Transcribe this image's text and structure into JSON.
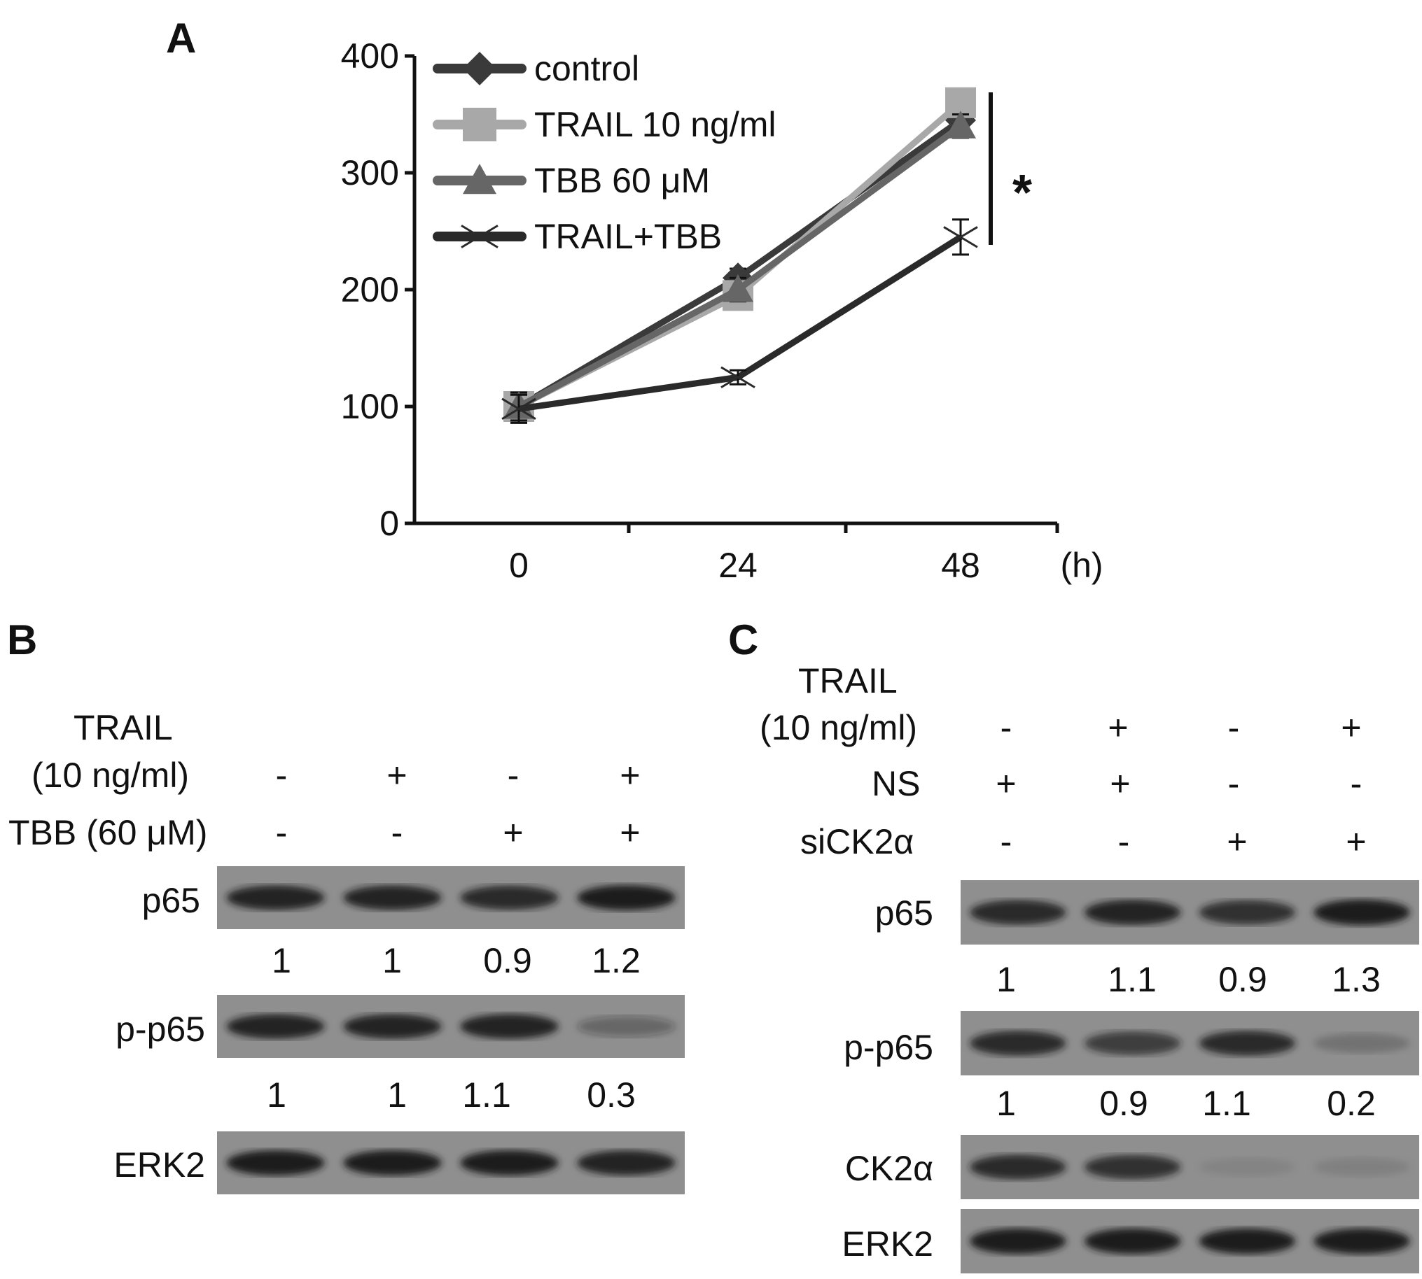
{
  "panels": {
    "a": "A",
    "b": "B",
    "c": "C"
  },
  "chart_data": {
    "type": "line",
    "x": [
      0,
      24,
      48
    ],
    "xlabel": "(h)",
    "ylabel": "",
    "ylim": [
      0,
      400
    ],
    "yticks": [
      0,
      100,
      200,
      300,
      400
    ],
    "xticks": [
      "0",
      "24",
      "48"
    ],
    "grid": false,
    "legend": "top-left",
    "significance_mark": "*",
    "series": [
      {
        "name": "control",
        "values": [
          100,
          210,
          345
        ],
        "errors": [
          12,
          8,
          10
        ],
        "color": "#3a3a3a",
        "marker": "diamond"
      },
      {
        "name": "TRAIL 10 ng/ml",
        "values": [
          100,
          195,
          360
        ],
        "errors": [
          12,
          10,
          10
        ],
        "color": "#a8a8a8",
        "marker": "square"
      },
      {
        "name": "TBB 60 μM",
        "values": [
          100,
          200,
          340
        ],
        "errors": [
          12,
          10,
          10
        ],
        "color": "#666666",
        "marker": "triangle"
      },
      {
        "name": "TRAIL+TBB",
        "values": [
          98,
          125,
          245
        ],
        "errors": [
          12,
          6,
          15
        ],
        "color": "#2a2a2a",
        "marker": "x"
      }
    ]
  },
  "panel_b": {
    "trail_label_1": "TRAIL",
    "trail_label_2": "(10 ng/ml)",
    "tbb_label": "TBB (60 μM)",
    "trail_signs": [
      "-",
      "+",
      "-",
      "+"
    ],
    "tbb_signs": [
      "-",
      "-",
      "+",
      "+"
    ],
    "blots": [
      {
        "label": "p65",
        "values": [
          "1",
          "1",
          "0.9",
          "1.2"
        ],
        "intensity": [
          0.9,
          0.9,
          0.85,
          1.0
        ]
      },
      {
        "label": "p-p65",
        "values": [
          "1",
          "1",
          "1.1",
          "0.3"
        ],
        "intensity": [
          0.9,
          0.9,
          0.95,
          0.35
        ]
      },
      {
        "label": "ERK2",
        "values": [],
        "intensity": [
          1.0,
          1.0,
          1.0,
          0.95
        ]
      }
    ]
  },
  "panel_c": {
    "trail_label_1": "TRAIL",
    "trail_label_2": "(10 ng/ml)",
    "ns_label": "NS",
    "sick2_label": "siCK2α",
    "trail_signs": [
      "-",
      "+",
      "-",
      "+"
    ],
    "ns_signs": [
      "+",
      "+",
      "-",
      "-"
    ],
    "sick2_signs": [
      "-",
      "-",
      "+",
      "+"
    ],
    "blots": [
      {
        "label": "p65",
        "values": [
          "1",
          "1.1",
          "0.9",
          "1.3"
        ],
        "intensity": [
          0.85,
          0.9,
          0.8,
          1.0
        ]
      },
      {
        "label": "p-p65",
        "values": [
          "1",
          "0.9",
          "1.1",
          "0.2"
        ],
        "intensity": [
          0.85,
          0.7,
          0.85,
          0.2
        ]
      },
      {
        "label": "CK2α",
        "values": [],
        "intensity": [
          0.85,
          0.8,
          0.08,
          0.1
        ]
      },
      {
        "label": "ERK2",
        "values": [],
        "intensity": [
          1.0,
          1.0,
          1.0,
          1.0
        ]
      }
    ]
  }
}
